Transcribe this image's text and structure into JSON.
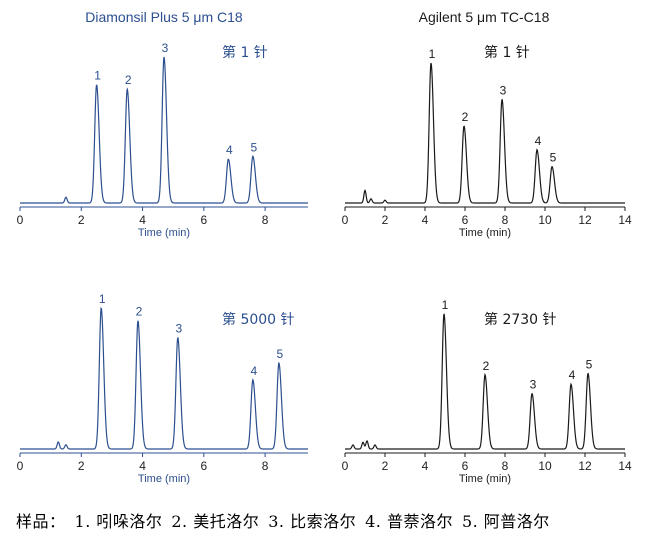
{
  "panel_titles": {
    "left": "Diamonsil Plus 5 μm C18",
    "right": "Agilent 5 μm TC-C18"
  },
  "colors": {
    "left": "#2c4f8f",
    "right": "#1a1a1a"
  },
  "caption": {
    "prefix": "样品：",
    "items": [
      "1. 吲哚洛尔",
      "2. 美托洛尔",
      "3. 比索洛尔",
      "4. 普萘洛尔",
      "5. 阿普洛尔"
    ]
  },
  "chart_data": [
    {
      "type": "line",
      "id": "ul",
      "annotation": "第 1 针",
      "xlabel": "Time (min)",
      "ylabel": "",
      "xlim": [
        0,
        9.4
      ],
      "xticks": [
        0,
        2,
        4,
        6,
        8
      ],
      "ylim": [
        0,
        1.0
      ],
      "baseline": [
        [
          1.5,
          0.04
        ]
      ],
      "peaks": [
        {
          "label": "1",
          "time": 2.5,
          "height": 0.81
        },
        {
          "label": "2",
          "time": 3.5,
          "height": 0.78
        },
        {
          "label": "3",
          "time": 4.7,
          "height": 1.0
        },
        {
          "label": "4",
          "time": 6.8,
          "height": 0.3
        },
        {
          "label": "5",
          "time": 7.6,
          "height": 0.32
        }
      ]
    },
    {
      "type": "line",
      "id": "ur",
      "annotation": "第 1 针",
      "xlabel": "Time (min)",
      "ylabel": "",
      "xlim": [
        0,
        14
      ],
      "xticks": [
        0,
        2,
        4,
        6,
        8,
        10,
        12,
        14
      ],
      "ylim": [
        0,
        1.0
      ],
      "baseline": [
        [
          1.0,
          0.09
        ],
        [
          1.3,
          0.03
        ],
        [
          2.0,
          0.02
        ]
      ],
      "peaks": [
        {
          "label": "1",
          "time": 4.3,
          "height": 1.0
        },
        {
          "label": "2",
          "time": 5.95,
          "height": 0.55
        },
        {
          "label": "3",
          "time": 7.85,
          "height": 0.74
        },
        {
          "label": "4",
          "time": 9.6,
          "height": 0.38
        },
        {
          "label": "5",
          "time": 10.35,
          "height": 0.26
        }
      ]
    },
    {
      "type": "line",
      "id": "ll",
      "annotation": "第 5000 针",
      "xlabel": "Time (min)",
      "ylabel": "",
      "xlim": [
        0,
        9.4
      ],
      "xticks": [
        0,
        2,
        4,
        6,
        8
      ],
      "ylim": [
        0,
        1.0
      ],
      "baseline": [
        [
          1.25,
          0.05
        ],
        [
          1.5,
          0.03
        ]
      ],
      "peaks": [
        {
          "label": "1",
          "time": 2.65,
          "height": 1.0
        },
        {
          "label": "2",
          "time": 3.85,
          "height": 0.91
        },
        {
          "label": "3",
          "time": 5.15,
          "height": 0.79
        },
        {
          "label": "4",
          "time": 7.6,
          "height": 0.49
        },
        {
          "label": "5",
          "time": 8.45,
          "height": 0.61
        }
      ]
    },
    {
      "type": "line",
      "id": "lr",
      "annotation": "第 2730 针",
      "xlabel": "Time (min)",
      "ylabel": "",
      "xlim": [
        0,
        14
      ],
      "xticks": [
        0,
        2,
        4,
        6,
        8,
        10,
        12,
        14
      ],
      "ylim": [
        0,
        1.0
      ],
      "baseline": [
        [
          0.4,
          0.03
        ],
        [
          0.9,
          0.05
        ],
        [
          1.1,
          0.06
        ],
        [
          1.5,
          0.03
        ]
      ],
      "peaks": [
        {
          "label": "1",
          "time": 4.95,
          "height": 1.0
        },
        {
          "label": "2",
          "time": 7.0,
          "height": 0.55
        },
        {
          "label": "3",
          "time": 9.35,
          "height": 0.41
        },
        {
          "label": "4",
          "time": 11.3,
          "height": 0.48
        },
        {
          "label": "5",
          "time": 12.15,
          "height": 0.56
        }
      ]
    }
  ]
}
